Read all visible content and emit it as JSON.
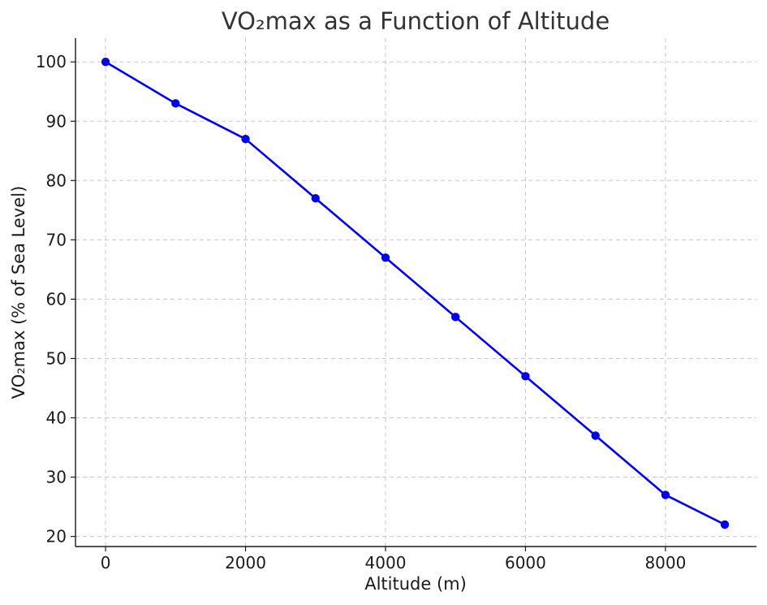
{
  "chart_data": {
    "type": "line",
    "title": "VO₂max as a Function of Altitude",
    "xlabel": "Altitude (m)",
    "ylabel": "VO₂max (% of Sea Level)",
    "xlim": [
      -430,
      9300
    ],
    "ylim": [
      18.3,
      104
    ],
    "x_ticks": [
      0,
      2000,
      4000,
      6000,
      8000
    ],
    "x_tick_labels": [
      "0",
      "2000",
      "4000",
      "6000",
      "8000"
    ],
    "y_ticks": [
      20,
      30,
      40,
      50,
      60,
      70,
      80,
      90,
      100
    ],
    "y_tick_labels": [
      "20",
      "30",
      "40",
      "50",
      "60",
      "70",
      "80",
      "90",
      "100"
    ],
    "grid": true,
    "series": [
      {
        "color": "#0000ee",
        "marker": "circle",
        "x": [
          0,
          1000,
          2000,
          3000,
          4000,
          5000,
          6000,
          7000,
          8000,
          8848
        ],
        "y": [
          100,
          93,
          87,
          77,
          67,
          57,
          47,
          37,
          27,
          22
        ]
      }
    ]
  }
}
